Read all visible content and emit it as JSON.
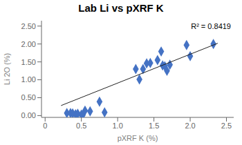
{
  "chart_data": {
    "type": "scatter",
    "title": "Lab Li vs pXRF K",
    "xlabel": "pXRF K (%)",
    "ylabel": "Li 2O (%)",
    "annotation": "R² = 0.8419",
    "xlim": [
      -0.05,
      2.6
    ],
    "ylim": [
      -0.05,
      2.65
    ],
    "xticks": [
      0,
      0.5,
      {
        "value": 1,
        "label": "1.0"
      },
      1.5,
      {
        "value": 2,
        "label": "2.0"
      },
      2.5
    ],
    "yticks": [
      {
        "value": 0,
        "label": "0.00"
      },
      {
        "value": 0.5,
        "label": "0.50"
      },
      {
        "value": 1,
        "label": "1.00"
      },
      {
        "value": 1.5,
        "label": "1.50"
      },
      {
        "value": 2,
        "label": "2.00"
      },
      {
        "value": 2.5,
        "label": "2.50"
      }
    ],
    "series": [
      {
        "type": "scatter",
        "marker": "diamond",
        "color": "#4472C4",
        "x": [
          0.3,
          0.35,
          0.38,
          0.42,
          0.45,
          0.5,
          0.52,
          0.55,
          0.62,
          0.75,
          0.82,
          1.25,
          1.3,
          1.35,
          1.4,
          1.45,
          1.55,
          1.6,
          1.62,
          1.65,
          1.68,
          1.72,
          1.95,
          2.0,
          2.32
        ],
        "values": [
          0.07,
          0.07,
          0.06,
          0.04,
          0.05,
          0.03,
          0.02,
          0.14,
          0.12,
          0.39,
          0.09,
          1.3,
          1.01,
          1.3,
          1.46,
          1.47,
          1.55,
          1.79,
          1.4,
          1.38,
          1.25,
          1.42,
          1.97,
          1.66,
          2.0
        ]
      },
      {
        "type": "line",
        "color": "#222222",
        "x": [
          0.22,
          2.38
        ],
        "values": [
          0.28,
          2.02
        ]
      }
    ]
  }
}
